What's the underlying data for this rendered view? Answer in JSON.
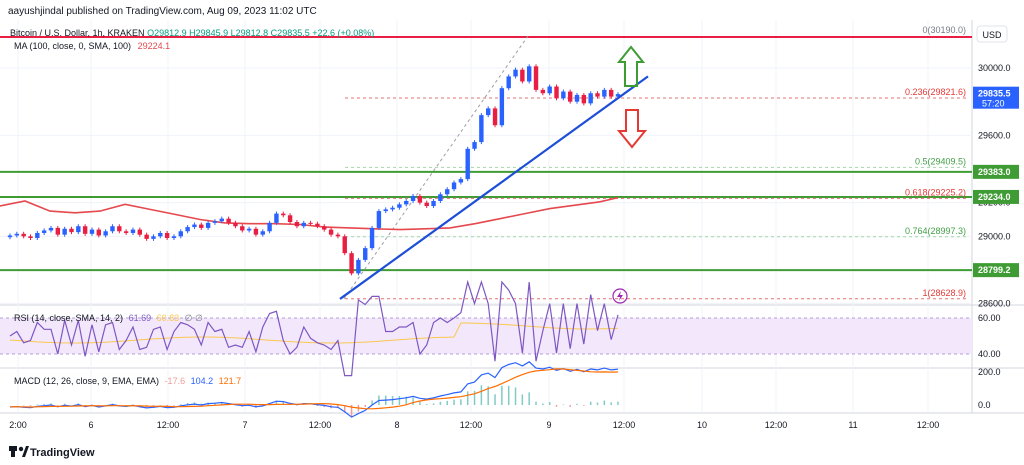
{
  "header": {
    "publish_line": "aayushjindal published on TradingView.com, Aug 09, 2023 11:02 UTC",
    "symbol_line": "Bitcoin / U.S. Dollar, 1h, KRAKEN",
    "ohlc": "O29812.9 H29845.9 L29812.8 C29835.5 +22.6 (+0.08%)",
    "ma_label": "MA (100, close, 0, SMA, 100)",
    "ma_value": "29224.1",
    "rsi_label": "RSI (14, close, SMA, 14, 2)",
    "rsi_value": "61.69",
    "rsi_value2": "60.83",
    "rsi_extra": "∅ ∅",
    "macd_label": "MACD (12, 26, close, 9, EMA, EMA)",
    "macd_hist": "-17.6",
    "macd_value": "104.2",
    "macd_signal": "121.7"
  },
  "currency": "USD",
  "brand": "TradingView",
  "colors": {
    "up": "#2962ff",
    "down": "#e91e43",
    "ma": "#e5484d",
    "trend": "#1d4ed8",
    "level": "#3f9c35",
    "arrow_up": "#3f9c35",
    "arrow_down": "#e53935",
    "rsi": "#7e57c2",
    "rsi_band": "#f3e8fb",
    "macd": "#2962ff",
    "signal": "#ff6d00"
  },
  "chart_data": {
    "type": "candlestick",
    "price_axis": {
      "ticks": [
        "30000.0",
        "29600.0",
        "29200.0",
        "29000.0",
        "28600.0"
      ],
      "ylim": [
        28560,
        30200
      ]
    },
    "time_axis": [
      "2:00",
      "6",
      "12:00",
      "7",
      "12:00",
      "8",
      "12:00",
      "9",
      "12:00",
      "10",
      "12:00",
      "11",
      "12:00"
    ],
    "current_price": "29835.5",
    "countdown": "57:20",
    "top_level": "30190.0",
    "fib_levels": [
      {
        "label": "0(30190.0)",
        "price": 30190.0
      },
      {
        "label": "0.236(29821.6)",
        "price": 29821.6
      },
      {
        "label": "0.5(29409.5)",
        "price": 29409.5
      },
      {
        "label": "0.618(29225.2)",
        "price": 29225.2
      },
      {
        "label": "0.764(28997.3)",
        "price": 28997.3
      },
      {
        "label": "1(28628.9)",
        "price": 28628.9
      }
    ],
    "horizontal_levels": [
      {
        "label": "29383.0",
        "price": 29383.0
      },
      {
        "label": "29234.0",
        "price": 29234.0
      },
      {
        "label": "28799.2",
        "price": 28799.2
      }
    ],
    "closes": [
      29005,
      29015,
      29000,
      28990,
      29020,
      29035,
      29050,
      29010,
      29045,
      29025,
      29060,
      29015,
      29040,
      29005,
      29030,
      29060,
      29030,
      29020,
      29040,
      29010,
      28985,
      29000,
      29020,
      28990,
      29000,
      29030,
      29055,
      29070,
      29050,
      29080,
      29090,
      29105,
      29080,
      29060,
      29035,
      29045,
      29010,
      29030,
      29080,
      29135,
      29125,
      29085,
      29060,
      29080,
      29075,
      29060,
      29040,
      29010,
      29000,
      28900,
      28780,
      28860,
      28930,
      29050,
      29150,
      29160,
      29170,
      29190,
      29210,
      29240,
      29200,
      29180,
      29210,
      29250,
      29280,
      29320,
      29340,
      29520,
      29560,
      29720,
      29760,
      29660,
      29880,
      29950,
      29990,
      29920,
      30010,
      29870,
      29850,
      29890,
      29820,
      29860,
      29800,
      29840,
      29790,
      29850,
      29830,
      29870,
      29830,
      29845
    ],
    "ma_line": [
      [
        0,
        29180
      ],
      [
        25,
        29210
      ],
      [
        50,
        29150
      ],
      [
        75,
        29140
      ],
      [
        100,
        29150
      ],
      [
        125,
        29190
      ],
      [
        150,
        29160
      ],
      [
        175,
        29130
      ],
      [
        200,
        29100
      ],
      [
        225,
        29080
      ],
      [
        250,
        29075
      ],
      [
        275,
        29075
      ],
      [
        300,
        29070
      ],
      [
        325,
        29055
      ],
      [
        350,
        29050
      ],
      [
        375,
        29045
      ],
      [
        400,
        29040
      ],
      [
        425,
        29045
      ],
      [
        450,
        29050
      ],
      [
        475,
        29075
      ],
      [
        500,
        29105
      ],
      [
        525,
        29135
      ],
      [
        550,
        29165
      ],
      [
        575,
        29185
      ],
      [
        600,
        29205
      ],
      [
        618,
        29230
      ]
    ],
    "trendline": [
      [
        340,
        28628
      ],
      [
        648,
        29950
      ]
    ],
    "rsi": {
      "levels": [
        "60.00",
        "40.00"
      ],
      "value": 61.69
    },
    "macd": {
      "ticks": [
        "200.0",
        "0.0"
      ],
      "macd_value": 104.2,
      "signal_value": 121.7,
      "histogram_value": -17.6
    }
  }
}
